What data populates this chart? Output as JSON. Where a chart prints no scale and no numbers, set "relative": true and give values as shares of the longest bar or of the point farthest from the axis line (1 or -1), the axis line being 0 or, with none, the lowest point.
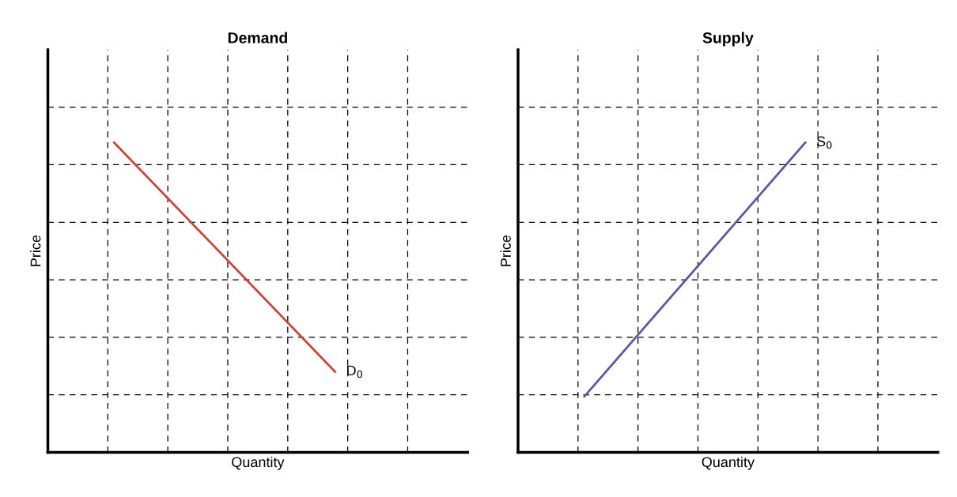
{
  "chart_data": [
    {
      "type": "line",
      "title": "Demand",
      "xlabel": "Quantity",
      "ylabel": "Price",
      "relative": true,
      "tick_labels": false,
      "grid": true,
      "legend": false,
      "marker": "none",
      "line_style": "solid",
      "categories": [
        null,
        null
      ],
      "series": [
        {
          "name": "D$_{0}$",
          "color": "#c8463c",
          "values": [
            1,
            0.26
          ]
        }
      ]
    },
    {
      "type": "line",
      "title": "Supply",
      "xlabel": "Quantity",
      "ylabel": "Price",
      "relative": true,
      "tick_labels": false,
      "grid": true,
      "legend": false,
      "marker": "none",
      "line_style": "solid",
      "categories": [
        null,
        null
      ],
      "series": [
        {
          "name": "S$_{0}$",
          "color": "#5a5aa0",
          "values": [
            0.18,
            1
          ]
        }
      ]
    }
  ]
}
